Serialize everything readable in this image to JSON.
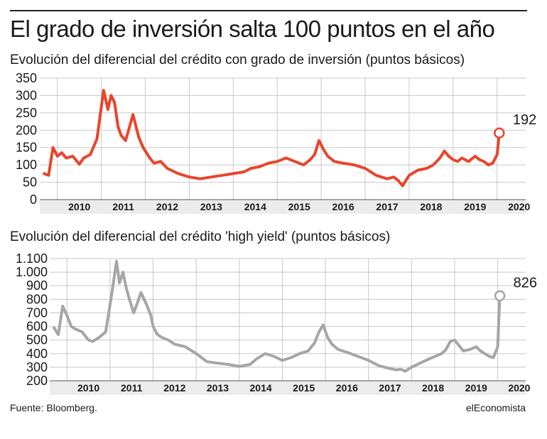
{
  "header": {
    "title": "El grado de inversión salta 100 puntos en el año"
  },
  "footer": {
    "source": "Fuente: Bloomberg.",
    "brand": "elEconomista"
  },
  "chart_data": [
    {
      "type": "line",
      "title": "Evolución del diferencial del crédito con grado de inversión (puntos básicos)",
      "xlabel": "",
      "ylabel": "",
      "color": "#e8452c",
      "ylim": [
        0,
        350
      ],
      "yticks": [
        0,
        50,
        100,
        150,
        200,
        250,
        300,
        350
      ],
      "ytick_labels": [
        "0",
        "50",
        "100",
        "150",
        "200",
        "250",
        "300",
        "350"
      ],
      "xlim": [
        2009.6,
        2020.65
      ],
      "xtick_labels": [
        "2010",
        "2011",
        "2012",
        "2013",
        "2014",
        "2015",
        "2016",
        "2017",
        "2018",
        "2019",
        "2020"
      ],
      "grid": true,
      "end_label": "192",
      "series": [
        {
          "x": [
            2009.7,
            2009.8,
            2009.9,
            2010.0,
            2010.1,
            2010.2,
            2010.35,
            2010.5,
            2010.6,
            2010.75,
            2010.9,
            2011.05,
            2011.15,
            2011.22,
            2011.3,
            2011.38,
            2011.45,
            2011.55,
            2011.62,
            2011.72,
            2011.85,
            2011.95,
            2012.0,
            2012.1,
            2012.2,
            2012.35,
            2012.5,
            2012.75,
            2013.0,
            2013.25,
            2013.5,
            2013.75,
            2014.0,
            2014.25,
            2014.4,
            2014.6,
            2014.8,
            2015.0,
            2015.2,
            2015.4,
            2015.6,
            2015.75,
            2015.85,
            2015.95,
            2016.05,
            2016.15,
            2016.3,
            2016.5,
            2016.75,
            2017.0,
            2017.25,
            2017.5,
            2017.65,
            2017.75,
            2017.85,
            2018.0,
            2018.2,
            2018.4,
            2018.55,
            2018.7,
            2018.8,
            2018.9,
            2019.0,
            2019.1,
            2019.2,
            2019.35,
            2019.5,
            2019.6,
            2019.7,
            2019.8,
            2019.9,
            2020.0,
            2020.05
          ],
          "y": [
            75,
            70,
            150,
            125,
            135,
            120,
            125,
            102,
            120,
            130,
            175,
            315,
            260,
            300,
            280,
            210,
            185,
            170,
            200,
            245,
            180,
            150,
            140,
            120,
            105,
            110,
            90,
            75,
            65,
            60,
            65,
            70,
            75,
            80,
            90,
            95,
            105,
            110,
            120,
            110,
            100,
            115,
            130,
            170,
            145,
            125,
            110,
            105,
            100,
            90,
            70,
            60,
            65,
            55,
            40,
            70,
            85,
            90,
            100,
            120,
            140,
            125,
            115,
            110,
            120,
            110,
            125,
            115,
            110,
            100,
            105,
            130,
            192
          ]
        }
      ]
    },
    {
      "type": "line",
      "title": "Evolución del diferencial del crédito 'high yield' (puntos básicos)",
      "xlabel": "",
      "ylabel": "",
      "color": "#a6a6a6",
      "ylim": [
        200,
        1100
      ],
      "yticks": [
        200,
        300,
        400,
        500,
        600,
        700,
        800,
        900,
        1000,
        1100
      ],
      "ytick_labels": [
        "200",
        "300",
        "400",
        "500",
        "600",
        "700",
        "800",
        "900",
        "1.000",
        "1.100"
      ],
      "xlim": [
        2009.6,
        2020.65
      ],
      "xtick_labels": [
        "2010",
        "2011",
        "2012",
        "2013",
        "2014",
        "2015",
        "2016",
        "2017",
        "2018",
        "2019",
        "2020"
      ],
      "grid": true,
      "end_label": "826",
      "series": [
        {
          "x": [
            2009.7,
            2009.8,
            2009.9,
            2010.0,
            2010.1,
            2010.2,
            2010.35,
            2010.5,
            2010.6,
            2010.75,
            2010.9,
            2011.05,
            2011.15,
            2011.22,
            2011.3,
            2011.38,
            2011.45,
            2011.55,
            2011.62,
            2011.72,
            2011.85,
            2011.95,
            2012.0,
            2012.1,
            2012.2,
            2012.35,
            2012.5,
            2012.75,
            2013.0,
            2013.25,
            2013.5,
            2013.75,
            2014.0,
            2014.25,
            2014.4,
            2014.6,
            2014.8,
            2015.0,
            2015.2,
            2015.4,
            2015.6,
            2015.75,
            2015.85,
            2015.95,
            2016.05,
            2016.15,
            2016.3,
            2016.5,
            2016.75,
            2017.0,
            2017.25,
            2017.5,
            2017.65,
            2017.75,
            2017.85,
            2018.0,
            2018.2,
            2018.4,
            2018.55,
            2018.7,
            2018.8,
            2018.9,
            2019.0,
            2019.1,
            2019.2,
            2019.35,
            2019.5,
            2019.6,
            2019.7,
            2019.8,
            2019.9,
            2020.0,
            2020.05
          ],
          "y": [
            590,
            540,
            750,
            680,
            600,
            580,
            560,
            500,
            490,
            520,
            560,
            860,
            1080,
            920,
            1000,
            880,
            800,
            700,
            760,
            850,
            760,
            680,
            600,
            540,
            520,
            500,
            470,
            450,
            400,
            340,
            330,
            320,
            305,
            320,
            360,
            400,
            380,
            350,
            370,
            400,
            420,
            480,
            560,
            610,
            520,
            470,
            430,
            410,
            380,
            350,
            310,
            290,
            280,
            285,
            270,
            300,
            330,
            360,
            380,
            400,
            430,
            490,
            500,
            460,
            420,
            430,
            450,
            420,
            400,
            380,
            370,
            450,
            826
          ]
        }
      ]
    }
  ]
}
